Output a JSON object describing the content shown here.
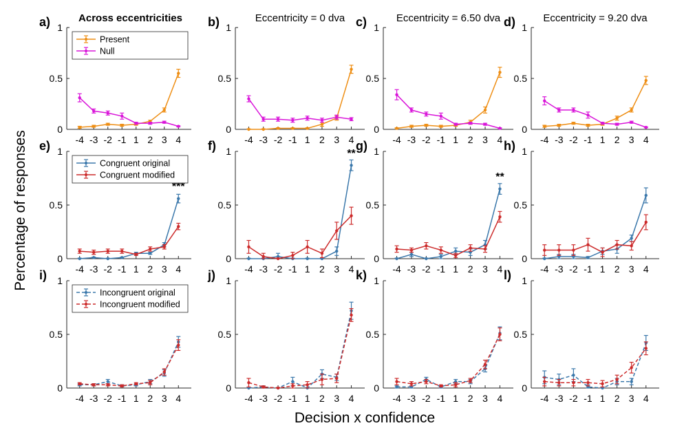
{
  "figure": {
    "ylabel": "Percentage of responses",
    "xlabel": "Decision x confidence",
    "colors": {
      "present": "#EE8E14",
      "null": "#D915D9",
      "original": "#3B78AB",
      "modified": "#CC2A2A",
      "axis": "#262626"
    }
  },
  "chart_data": [
    {
      "panel": "a)",
      "type": "line",
      "title": "Across eccentricities",
      "title_bold": true,
      "x": [
        -4,
        -3,
        -2,
        -1,
        1,
        2,
        3,
        4
      ],
      "ylim": [
        0,
        1
      ],
      "yticks": [
        0,
        0.5,
        1
      ],
      "legend": {
        "placement": "top-left"
      },
      "series": [
        {
          "name": "Present",
          "color": "present",
          "dashed": false,
          "values": [
            0.02,
            0.03,
            0.05,
            0.04,
            0.05,
            0.08,
            0.19,
            0.55
          ],
          "err": [
            0.01,
            0.01,
            0.01,
            0.01,
            0.01,
            0.01,
            0.02,
            0.04
          ]
        },
        {
          "name": "Null",
          "color": "null",
          "dashed": false,
          "values": [
            0.31,
            0.18,
            0.16,
            0.13,
            0.06,
            0.06,
            0.07,
            0.03
          ],
          "err": [
            0.04,
            0.02,
            0.02,
            0.03,
            0.01,
            0.01,
            0.01,
            0.005
          ]
        }
      ]
    },
    {
      "panel": "b)",
      "type": "line",
      "title": "Eccentricity = 0 dva",
      "title_bold": false,
      "x": [
        -4,
        -3,
        -2,
        -1,
        1,
        2,
        3,
        4
      ],
      "ylim": [
        0,
        1
      ],
      "yticks": [
        0,
        0.5,
        1
      ],
      "series": [
        {
          "color": "present",
          "dashed": false,
          "values": [
            0.0,
            0.0,
            0.01,
            0.01,
            0.01,
            0.05,
            0.11,
            0.59
          ],
          "err": [
            0.005,
            0.005,
            0.005,
            0.005,
            0.005,
            0.02,
            0.02,
            0.04
          ]
        },
        {
          "color": "null",
          "dashed": false,
          "values": [
            0.3,
            0.1,
            0.1,
            0.09,
            0.11,
            0.09,
            0.12,
            0.1
          ],
          "err": [
            0.03,
            0.02,
            0.02,
            0.02,
            0.02,
            0.02,
            0.02,
            0.015
          ]
        }
      ]
    },
    {
      "panel": "c)",
      "type": "line",
      "title": "Eccentricity = 6.50 dva",
      "title_bold": false,
      "x": [
        -4,
        -3,
        -2,
        -1,
        1,
        2,
        3,
        4
      ],
      "ylim": [
        0,
        1
      ],
      "yticks": [
        0,
        0.5,
        1
      ],
      "series": [
        {
          "color": "present",
          "dashed": false,
          "values": [
            0.01,
            0.03,
            0.04,
            0.03,
            0.04,
            0.07,
            0.19,
            0.56
          ],
          "err": [
            0.005,
            0.01,
            0.01,
            0.01,
            0.01,
            0.02,
            0.03,
            0.05
          ]
        },
        {
          "color": "null",
          "dashed": false,
          "values": [
            0.34,
            0.19,
            0.15,
            0.13,
            0.05,
            0.06,
            0.05,
            0.01
          ],
          "err": [
            0.05,
            0.02,
            0.02,
            0.03,
            0.01,
            0.01,
            0.01,
            0.005
          ]
        }
      ]
    },
    {
      "panel": "d)",
      "type": "line",
      "title": "Eccentricity = 9.20 dva",
      "title_bold": false,
      "x": [
        -4,
        -3,
        -2,
        -1,
        1,
        2,
        3,
        4
      ],
      "ylim": [
        0,
        1
      ],
      "yticks": [
        0,
        0.5,
        1
      ],
      "series": [
        {
          "color": "present",
          "dashed": false,
          "values": [
            0.03,
            0.04,
            0.06,
            0.04,
            0.05,
            0.11,
            0.19,
            0.48
          ],
          "err": [
            0.01,
            0.01,
            0.01,
            0.01,
            0.01,
            0.02,
            0.02,
            0.04
          ]
        },
        {
          "color": "null",
          "dashed": false,
          "values": [
            0.28,
            0.19,
            0.19,
            0.14,
            0.06,
            0.05,
            0.07,
            0.02
          ],
          "err": [
            0.04,
            0.02,
            0.02,
            0.03,
            0.01,
            0.01,
            0.01,
            0.005
          ]
        }
      ]
    },
    {
      "panel": "e)",
      "type": "line",
      "title": "",
      "x": [
        -4,
        -3,
        -2,
        -1,
        1,
        2,
        3,
        4
      ],
      "ylim": [
        0,
        1
      ],
      "yticks": [
        0,
        0.5,
        1
      ],
      "legend": {
        "placement": "top-left"
      },
      "annotation": {
        "text": "***",
        "x": 4,
        "y": 0.64
      },
      "series": [
        {
          "name": "Congruent original",
          "color": "original",
          "dashed": false,
          "values": [
            0.0,
            0.01,
            0.0,
            0.01,
            0.05,
            0.05,
            0.13,
            0.56
          ],
          "err": [
            0.005,
            0.005,
            0.005,
            0.005,
            0.01,
            0.01,
            0.02,
            0.04
          ]
        },
        {
          "name": "Congruent modified",
          "color": "modified",
          "dashed": false,
          "values": [
            0.07,
            0.06,
            0.07,
            0.07,
            0.04,
            0.09,
            0.11,
            0.3
          ],
          "err": [
            0.02,
            0.02,
            0.02,
            0.02,
            0.01,
            0.02,
            0.02,
            0.03
          ]
        }
      ]
    },
    {
      "panel": "f)",
      "type": "line",
      "title": "",
      "x": [
        -4,
        -3,
        -2,
        -1,
        1,
        2,
        3,
        4
      ],
      "ylim": [
        0,
        1
      ],
      "yticks": [
        0,
        0.5,
        1
      ],
      "annotation": {
        "text": "**",
        "x": 4,
        "y": 0.95
      },
      "series": [
        {
          "color": "original",
          "dashed": false,
          "values": [
            0.0,
            0.0,
            0.02,
            0.0,
            0.0,
            0.0,
            0.07,
            0.87
          ],
          "err": [
            0.005,
            0.005,
            0.03,
            0.005,
            0.005,
            0.005,
            0.04,
            0.05
          ]
        },
        {
          "color": "modified",
          "dashed": false,
          "values": [
            0.11,
            0.02,
            0.0,
            0.03,
            0.11,
            0.05,
            0.26,
            0.4
          ],
          "err": [
            0.06,
            0.03,
            0.005,
            0.03,
            0.06,
            0.04,
            0.08,
            0.08
          ]
        }
      ]
    },
    {
      "panel": "g)",
      "type": "line",
      "title": "",
      "x": [
        -4,
        -3,
        -2,
        -1,
        1,
        2,
        3,
        4
      ],
      "ylim": [
        0,
        1
      ],
      "yticks": [
        0,
        0.5,
        1
      ],
      "annotation": {
        "text": "**",
        "x": 4,
        "y": 0.73
      },
      "series": [
        {
          "color": "original",
          "dashed": false,
          "values": [
            0.0,
            0.04,
            0.0,
            0.02,
            0.07,
            0.06,
            0.13,
            0.65
          ],
          "err": [
            0.005,
            0.02,
            0.005,
            0.02,
            0.03,
            0.03,
            0.04,
            0.05
          ]
        },
        {
          "color": "modified",
          "dashed": false,
          "values": [
            0.09,
            0.08,
            0.12,
            0.08,
            0.03,
            0.1,
            0.09,
            0.39
          ],
          "err": [
            0.03,
            0.02,
            0.03,
            0.03,
            0.02,
            0.03,
            0.03,
            0.05
          ]
        }
      ]
    },
    {
      "panel": "h)",
      "type": "line",
      "title": "",
      "x": [
        -4,
        -3,
        -2,
        -1,
        1,
        2,
        3,
        4
      ],
      "ylim": [
        0,
        1
      ],
      "yticks": [
        0,
        0.5,
        1
      ],
      "series": [
        {
          "color": "original",
          "dashed": false,
          "values": [
            0.0,
            0.02,
            0.02,
            0.01,
            0.07,
            0.09,
            0.19,
            0.59
          ],
          "err": [
            0.005,
            0.02,
            0.02,
            0.01,
            0.03,
            0.04,
            0.03,
            0.07
          ]
        },
        {
          "color": "modified",
          "dashed": false,
          "values": [
            0.08,
            0.08,
            0.08,
            0.13,
            0.06,
            0.13,
            0.12,
            0.34
          ],
          "err": [
            0.05,
            0.05,
            0.05,
            0.06,
            0.04,
            0.04,
            0.04,
            0.07
          ]
        }
      ]
    },
    {
      "panel": "i)",
      "type": "line",
      "title": "",
      "x": [
        -4,
        -3,
        -2,
        -1,
        1,
        2,
        3,
        4
      ],
      "ylim": [
        0,
        1
      ],
      "yticks": [
        0,
        0.5,
        1
      ],
      "legend": {
        "placement": "top-left"
      },
      "series": [
        {
          "name": "Incongruent original",
          "color": "original",
          "dashed": true,
          "values": [
            0.03,
            0.03,
            0.06,
            0.02,
            0.03,
            0.06,
            0.14,
            0.43
          ],
          "err": [
            0.01,
            0.01,
            0.02,
            0.01,
            0.01,
            0.02,
            0.03,
            0.05
          ]
        },
        {
          "name": "Incongruent modified",
          "color": "modified",
          "dashed": true,
          "values": [
            0.04,
            0.03,
            0.03,
            0.02,
            0.04,
            0.05,
            0.15,
            0.4
          ],
          "err": [
            0.01,
            0.01,
            0.01,
            0.01,
            0.01,
            0.02,
            0.03,
            0.05
          ]
        }
      ]
    },
    {
      "panel": "j)",
      "type": "line",
      "title": "",
      "x": [
        -4,
        -3,
        -2,
        -1,
        1,
        2,
        3,
        4
      ],
      "ylim": [
        0,
        1
      ],
      "yticks": [
        0,
        0.5,
        1
      ],
      "series": [
        {
          "color": "original",
          "dashed": true,
          "values": [
            0.0,
            0.01,
            0.0,
            0.06,
            0.0,
            0.13,
            0.1,
            0.72
          ],
          "err": [
            0.005,
            0.01,
            0.005,
            0.04,
            0.005,
            0.04,
            0.03,
            0.08
          ]
        },
        {
          "color": "modified",
          "dashed": true,
          "values": [
            0.05,
            0.01,
            0.0,
            0.02,
            0.03,
            0.08,
            0.09,
            0.68
          ],
          "err": [
            0.04,
            0.01,
            0.005,
            0.02,
            0.03,
            0.05,
            0.04,
            0.06
          ]
        }
      ]
    },
    {
      "panel": "k)",
      "type": "line",
      "title": "",
      "x": [
        -4,
        -3,
        -2,
        -1,
        1,
        2,
        3,
        4
      ],
      "ylim": [
        0,
        1
      ],
      "yticks": [
        0,
        0.5,
        1
      ],
      "series": [
        {
          "color": "original",
          "dashed": true,
          "values": [
            0.01,
            0.01,
            0.08,
            0.01,
            0.06,
            0.06,
            0.18,
            0.51
          ],
          "err": [
            0.01,
            0.01,
            0.02,
            0.01,
            0.02,
            0.02,
            0.03,
            0.06
          ]
        },
        {
          "color": "modified",
          "dashed": true,
          "values": [
            0.06,
            0.04,
            0.06,
            0.02,
            0.03,
            0.07,
            0.22,
            0.5
          ],
          "err": [
            0.03,
            0.02,
            0.02,
            0.01,
            0.02,
            0.02,
            0.04,
            0.06
          ]
        }
      ]
    },
    {
      "panel": "l)",
      "type": "line",
      "title": "",
      "x": [
        -4,
        -3,
        -2,
        -1,
        1,
        2,
        3,
        4
      ],
      "ylim": [
        0,
        1
      ],
      "yticks": [
        0,
        0.5,
        1
      ],
      "series": [
        {
          "color": "original",
          "dashed": true,
          "values": [
            0.1,
            0.08,
            0.12,
            0.01,
            0.0,
            0.06,
            0.06,
            0.42
          ],
          "err": [
            0.06,
            0.05,
            0.06,
            0.02,
            0.01,
            0.03,
            0.03,
            0.07
          ]
        },
        {
          "color": "modified",
          "dashed": true,
          "values": [
            0.06,
            0.05,
            0.05,
            0.05,
            0.04,
            0.08,
            0.19,
            0.37
          ],
          "err": [
            0.04,
            0.03,
            0.03,
            0.03,
            0.03,
            0.04,
            0.05,
            0.06
          ]
        }
      ]
    }
  ]
}
